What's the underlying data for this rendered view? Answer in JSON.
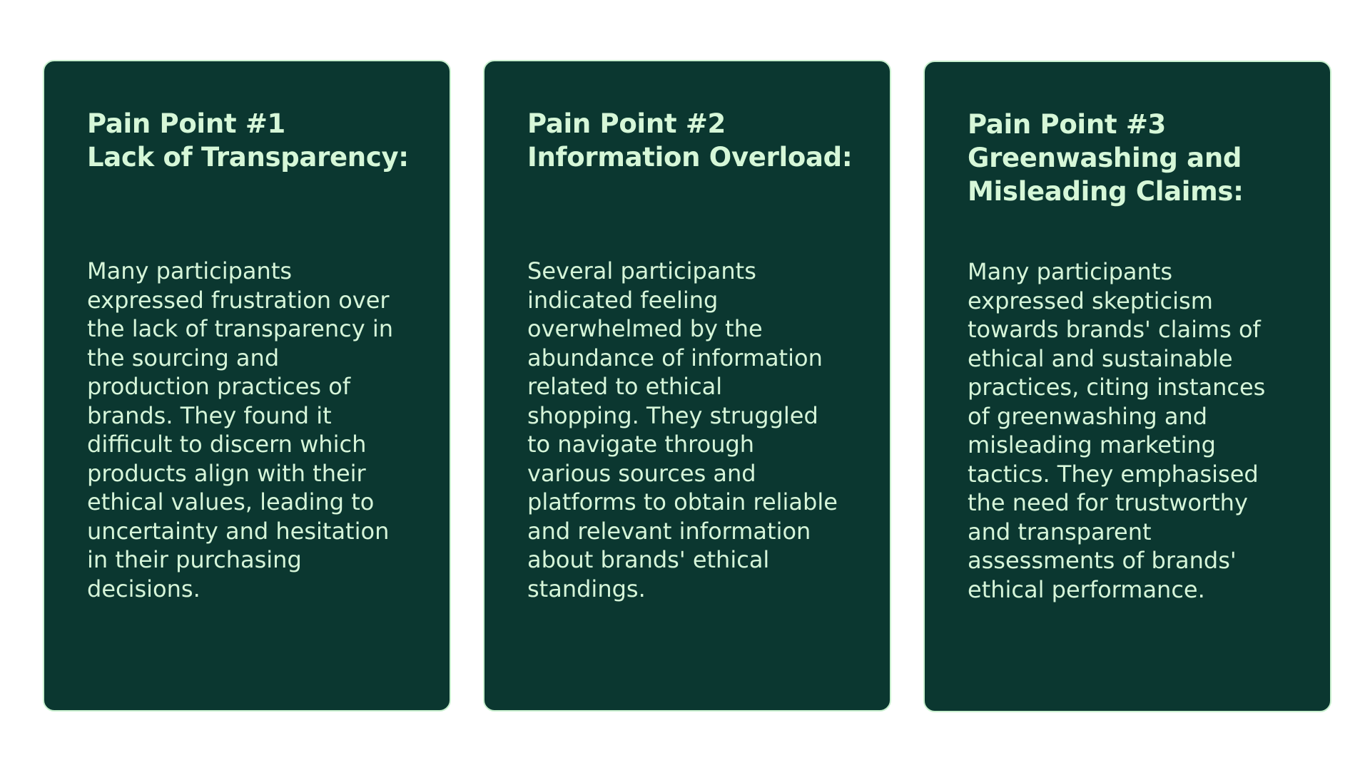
{
  "cards": [
    {
      "title_lines": [
        "Pain Point #1",
        "Lack of Transparency:"
      ],
      "body_lines": [
        "Many participants",
        "expressed frustration over",
        "the lack of transparency in",
        "the sourcing and",
        "production practices of",
        "brands. They found it",
        "difficult to discern which",
        "products align with their",
        "ethical values, leading to",
        "uncertainty and hesitation",
        "in their purchasing",
        "decisions."
      ]
    },
    {
      "title_lines": [
        "Pain Point #2",
        "Information Overload:"
      ],
      "body_lines": [
        "Several participants",
        "indicated feeling",
        "overwhelmed by the",
        "abundance of information",
        "related to ethical",
        "shopping. They struggled",
        "to navigate through",
        "various sources and",
        "platforms to obtain reliable",
        "and relevant information",
        "about brands' ethical",
        "standings."
      ]
    },
    {
      "title_lines": [
        "Pain Point #3",
        "Greenwashing and",
        "Misleading Claims:"
      ],
      "body_lines": [
        "Many participants",
        "expressed skepticism",
        "towards brands' claims of",
        "ethical and sustainable",
        "practices, citing instances",
        "of greenwashing and",
        "misleading marketing",
        "tactics. They emphasised",
        "the need for trustworthy",
        "and transparent",
        "assessments of brands'",
        "ethical performance."
      ]
    }
  ],
  "colors": {
    "card_background": "#0b3730",
    "card_border": "#c9f0cf",
    "text": "#d6f5d9",
    "page_background": "#ffffff"
  }
}
